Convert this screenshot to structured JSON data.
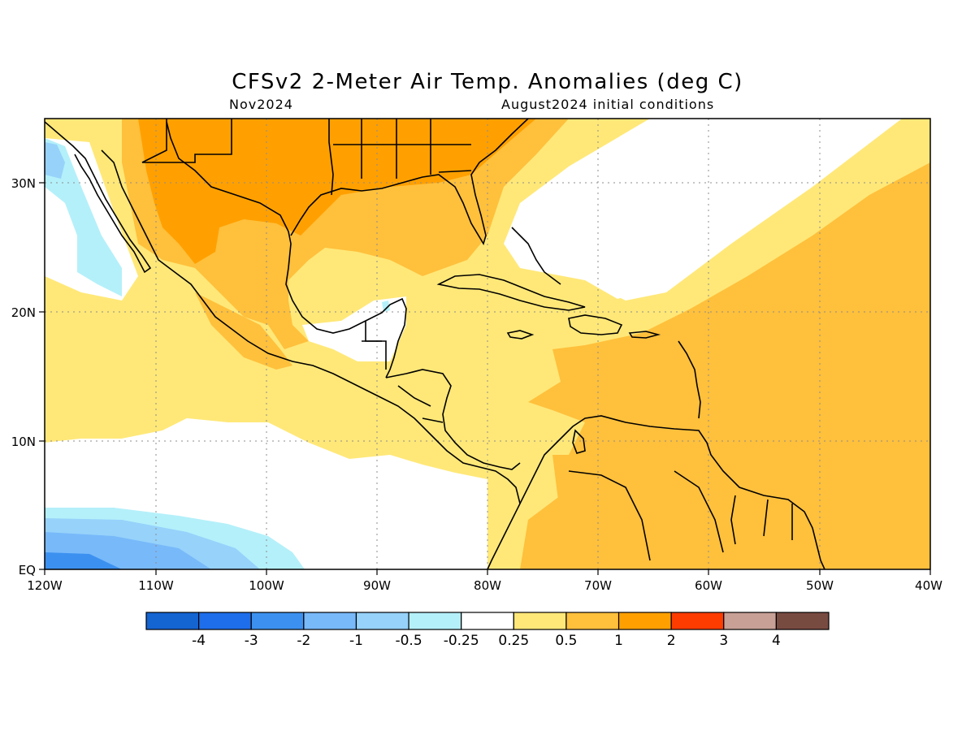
{
  "title": "CFSv2 2-Meter Air Temp. Anomalies (deg C)",
  "valid_month": "Nov2024",
  "init_label": "August2024 initial conditions",
  "lon_ticks": [
    "120W",
    "110W",
    "100W",
    "90W",
    "80W",
    "70W",
    "60W",
    "50W",
    "40W"
  ],
  "lat_ticks": [
    "30N",
    "20N",
    "10N",
    "EQ"
  ],
  "colorbar": {
    "colors": [
      "#1464d2",
      "#1e6eeb",
      "#3c91f0",
      "#78b9fa",
      "#96d2fa",
      "#b4f0fa",
      "#ffffff",
      "#ffe878",
      "#ffc03c",
      "#ffa000",
      "#ff3c00",
      "#c8a096",
      "#784b41"
    ],
    "labels": [
      "-4",
      "-3",
      "-2",
      "-1",
      "-0.5",
      "-0.25",
      "0.25",
      "0.5",
      "1",
      "2",
      "3",
      "4"
    ]
  }
}
